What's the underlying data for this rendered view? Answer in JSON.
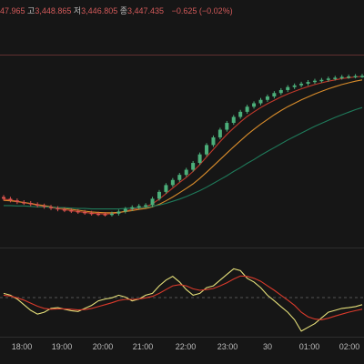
{
  "ohlc": {
    "open_value": "47.965",
    "high_label": "고",
    "high_value": "3,448.865",
    "low_label": "저",
    "low_value": "3,446.805",
    "close_label": "종",
    "close_value": "3,447.435",
    "change": "−0.625 (−0.02%)"
  },
  "time_axis": [
    "18:00",
    "19:00",
    "20:00",
    "21:00",
    "22:00",
    "23:00",
    "30",
    "01:00",
    "02:00"
  ],
  "colors": {
    "background": "#161616",
    "up": "#4caf7a",
    "down": "#d9534f",
    "ma_fast": "#c0392b",
    "ma_mid": "#d98c2b",
    "ma_slow": "#1f7a5a",
    "osc_fast": "#e6e07a",
    "osc_slow": "#d93a2b"
  },
  "chart_data": [
    {
      "type": "candlestick",
      "title": "",
      "x": [
        "17:30",
        "17:40",
        "17:50",
        "18:00",
        "18:10",
        "18:20",
        "18:30",
        "18:40",
        "18:50",
        "19:00",
        "19:10",
        "19:20",
        "19:30",
        "19:40",
        "19:50",
        "20:00",
        "20:10",
        "20:20",
        "20:30",
        "20:40",
        "20:50",
        "21:00",
        "21:10",
        "21:20",
        "21:30",
        "21:40",
        "21:50",
        "22:00",
        "22:10",
        "22:20",
        "22:30",
        "22:40",
        "22:50",
        "23:00",
        "23:10",
        "23:20",
        "23:30",
        "23:40",
        "23:50",
        "00:00",
        "00:10",
        "00:20",
        "00:30",
        "00:40",
        "00:50",
        "01:00",
        "01:10",
        "01:20",
        "01:30",
        "01:40",
        "01:50",
        "02:00",
        "02:10",
        "02:20"
      ],
      "close": [
        3418.6,
        3418.2,
        3417.8,
        3417.6,
        3417.3,
        3417.0,
        3416.7,
        3416.4,
        3416.1,
        3415.9,
        3415.7,
        3415.5,
        3415.3,
        3415.1,
        3415.0,
        3414.9,
        3415.1,
        3415.6,
        3416.2,
        3416.6,
        3416.9,
        3417.1,
        3418.6,
        3420.2,
        3421.8,
        3423.0,
        3424.2,
        3425.4,
        3427.0,
        3429.0,
        3431.2,
        3433.0,
        3434.8,
        3436.4,
        3437.8,
        3439.0,
        3440.2,
        3441.0,
        3441.8,
        3442.6,
        3443.4,
        3444.1,
        3444.8,
        3445.2,
        3445.6,
        3446.0,
        3446.3,
        3446.5,
        3446.8,
        3447.0,
        3447.2,
        3447.3,
        3447.4,
        3447.435
      ],
      "ylim": [
        3408,
        3452
      ],
      "series": [
        {
          "name": "",
          "values": [
            3418.5,
            3418.3,
            3418.0,
            3417.7,
            3417.4,
            3417.1,
            3416.8,
            3416.5,
            3416.3,
            3416.0,
            3415.8,
            3415.6,
            3415.4,
            3415.2,
            3415.1,
            3415.0,
            3415.1,
            3415.3,
            3415.7,
            3416.1,
            3416.4,
            3416.7,
            3417.4,
            3418.5,
            3419.8,
            3421.1,
            3422.4,
            3423.6,
            3425.0,
            3426.6,
            3428.4,
            3430.2,
            3432.0,
            3433.7,
            3435.2,
            3436.6,
            3437.9,
            3439.0,
            3440.0,
            3440.9,
            3441.7,
            3442.5,
            3443.2,
            3443.8,
            3444.4,
            3444.9,
            3445.4,
            3445.8,
            3446.2,
            3446.5,
            3446.8,
            3447.0,
            3447.2,
            3447.3
          ]
        },
        {
          "name": "",
          "values": [
            3418.2,
            3418.1,
            3417.9,
            3417.7,
            3417.5,
            3417.2,
            3417.0,
            3416.7,
            3416.5,
            3416.3,
            3416.1,
            3415.9,
            3415.7,
            3415.5,
            3415.4,
            3415.3,
            3415.3,
            3415.4,
            3415.6,
            3415.8,
            3416.1,
            3416.3,
            3416.7,
            3417.3,
            3418.1,
            3419.0,
            3420.0,
            3421.0,
            3422.1,
            3423.4,
            3424.8,
            3426.3,
            3427.8,
            3429.3,
            3430.8,
            3432.2,
            3433.6,
            3434.9,
            3436.1,
            3437.2,
            3438.3,
            3439.3,
            3440.2,
            3441.0,
            3441.8,
            3442.5,
            3443.2,
            3443.8,
            3444.4,
            3444.9,
            3445.4,
            3445.8,
            3446.2,
            3446.5
          ]
        },
        {
          "name": "",
          "values": [
            3417.0,
            3417.0,
            3416.9,
            3416.9,
            3416.8,
            3416.7,
            3416.7,
            3416.6,
            3416.5,
            3416.5,
            3416.4,
            3416.3,
            3416.3,
            3416.2,
            3416.2,
            3416.2,
            3416.2,
            3416.2,
            3416.3,
            3416.4,
            3416.5,
            3416.6,
            3416.8,
            3417.1,
            3417.5,
            3418.0,
            3418.5,
            3419.1,
            3419.8,
            3420.5,
            3421.3,
            3422.2,
            3423.1,
            3424.0,
            3425.0,
            3425.9,
            3426.9,
            3427.8,
            3428.8,
            3429.7,
            3430.6,
            3431.5,
            3432.4,
            3433.2,
            3434.0,
            3434.8,
            3435.6,
            3436.3,
            3437.0,
            3437.7,
            3438.3,
            3438.9,
            3439.5,
            3440.0
          ]
        }
      ]
    },
    {
      "type": "line",
      "title": "",
      "ylim": [
        -1,
        1
      ],
      "series": [
        {
          "name": "",
          "values": [
            0.1,
            0.05,
            -0.05,
            -0.2,
            -0.35,
            -0.45,
            -0.4,
            -0.3,
            -0.28,
            -0.32,
            -0.36,
            -0.38,
            -0.3,
            -0.22,
            -0.1,
            -0.05,
            -0.02,
            0.05,
            0.0,
            -0.1,
            -0.05,
            0.05,
            0.1,
            0.3,
            0.45,
            0.55,
            0.4,
            0.2,
            0.05,
            0.1,
            0.25,
            0.3,
            0.45,
            0.6,
            0.75,
            0.7,
            0.5,
            0.4,
            0.25,
            0.05,
            -0.1,
            -0.25,
            -0.4,
            -0.6,
            -0.9,
            -0.8,
            -0.7,
            -0.55,
            -0.4,
            -0.35,
            -0.3,
            -0.28,
            -0.25,
            -0.2
          ]
        },
        {
          "name": "",
          "values": [
            0.05,
            0.03,
            -0.02,
            -0.08,
            -0.16,
            -0.24,
            -0.3,
            -0.32,
            -0.31,
            -0.31,
            -0.32,
            -0.34,
            -0.33,
            -0.3,
            -0.25,
            -0.2,
            -0.15,
            -0.09,
            -0.06,
            -0.06,
            -0.05,
            -0.02,
            0.02,
            0.1,
            0.2,
            0.3,
            0.33,
            0.3,
            0.22,
            0.18,
            0.2,
            0.23,
            0.3,
            0.38,
            0.48,
            0.56,
            0.55,
            0.5,
            0.42,
            0.3,
            0.18,
            0.05,
            -0.08,
            -0.22,
            -0.4,
            -0.52,
            -0.58,
            -0.6,
            -0.56,
            -0.5,
            -0.45,
            -0.4,
            -0.36,
            -0.32
          ]
        }
      ]
    }
  ]
}
